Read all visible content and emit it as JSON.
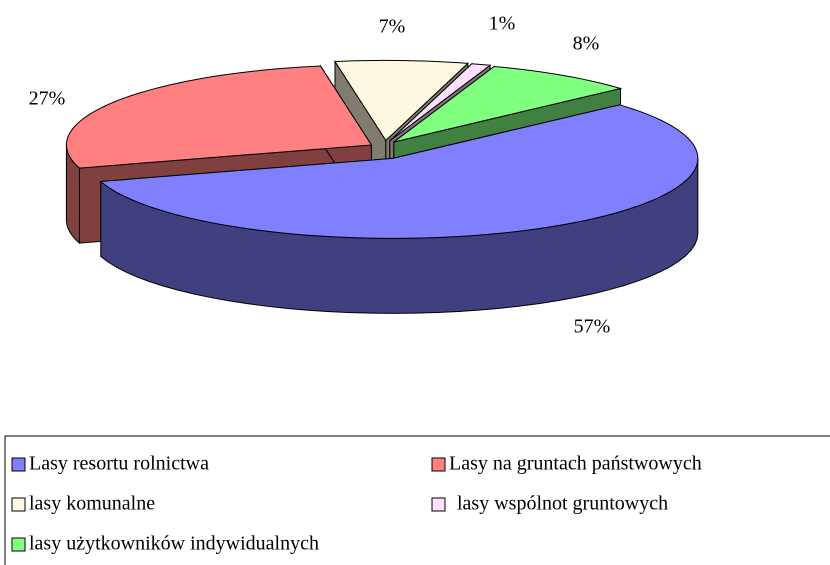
{
  "chart_data": {
    "type": "pie3d",
    "categories": [
      "Lasy resortu rolnictwa",
      "Lasy na gruntach państwowych",
      "lasy komunalne",
      "lasy wspólnot gruntowych",
      "lasy użytkowników indywidualnych"
    ],
    "values": [
      57,
      27,
      7,
      1,
      8
    ],
    "value_labels": [
      "57%",
      "27%",
      "7%",
      "1%",
      "8%"
    ],
    "colors": [
      "#8080ff",
      "#ff8080",
      "#fff8e0",
      "#ffe0ff",
      "#80ff80"
    ]
  }
}
